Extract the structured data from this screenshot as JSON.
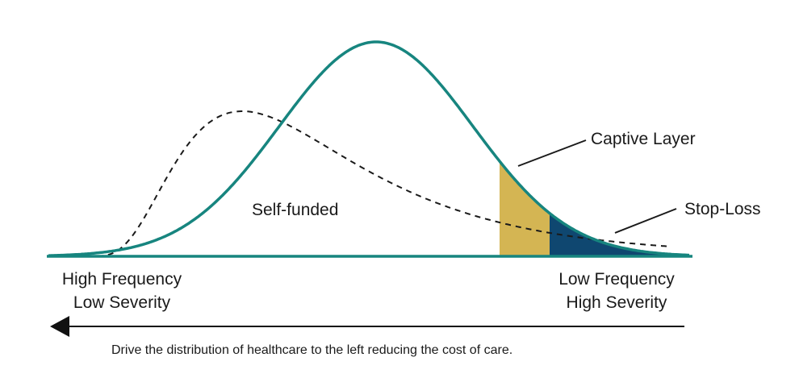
{
  "diagram": {
    "center_label": "Self-funded",
    "captive_label": "Captive Layer",
    "stoploss_label": "Stop-Loss",
    "left_axis": {
      "line1": "High Frequency",
      "line2": "Low Severity"
    },
    "right_axis": {
      "line1": "Low Frequency",
      "line2": "High Severity"
    },
    "caption": "Drive the distribution of healthcare to the left reducing the cost of care.",
    "colors": {
      "curve": "#17857f",
      "dashed": "#1a1a1a",
      "captive": "#d4b553",
      "stoploss": "#0f4770",
      "arrow": "#111111",
      "text": "#1a1a1a"
    },
    "curves": {
      "solid": "normal bell curve",
      "dashed": "right-skewed curve shifted left"
    }
  }
}
